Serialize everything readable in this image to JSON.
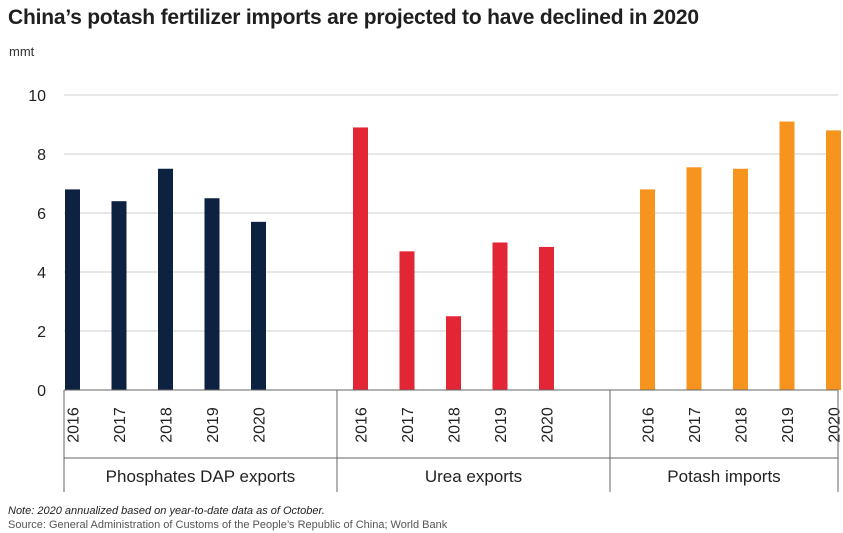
{
  "title": "China’s potash fertilizer imports are projected to have declined in 2020",
  "unit": "mmt",
  "note": "Note: 2020 annualized based on year-to-date data as of October.",
  "source": "Source: General Administration of Customs of the People’s Republic of China; World Bank",
  "chart_data": {
    "type": "bar",
    "title": "China’s potash fertilizer imports are projected to have declined in 2020",
    "ylabel": "mmt",
    "xlabel": "",
    "ylim": [
      0,
      10
    ],
    "yticks": [
      0,
      2,
      4,
      6,
      8,
      10
    ],
    "grid": true,
    "categories": [
      "2016",
      "2017",
      "2018",
      "2019",
      "2020"
    ],
    "groups": [
      {
        "name": "Phosphates DAP exports",
        "color": "#0d2240",
        "values": [
          6.8,
          6.4,
          7.5,
          6.5,
          5.7
        ]
      },
      {
        "name": "Urea exports",
        "color": "#e32636",
        "values": [
          8.9,
          4.7,
          2.5,
          5.0,
          4.85
        ]
      },
      {
        "name": "Potash imports",
        "color": "#f7941d",
        "values": [
          6.8,
          7.55,
          7.5,
          9.1,
          8.8
        ]
      }
    ]
  }
}
